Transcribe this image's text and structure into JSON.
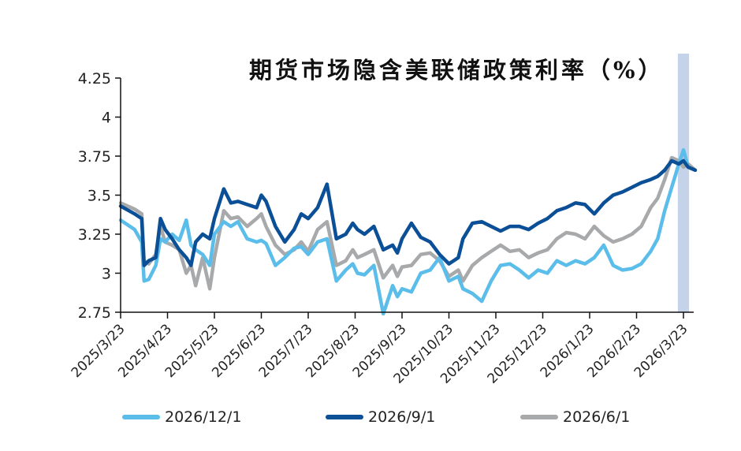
{
  "chart_data": {
    "type": "line",
    "title": "期货市场隐含美联储政策利率（%）",
    "xlabel": "",
    "ylabel": "",
    "ylim": [
      2.75,
      4.25
    ],
    "yticks": [
      "4.25",
      "4",
      "3.75",
      "3.5",
      "3.25",
      "3",
      "2.75"
    ],
    "ytick_values": [
      4.25,
      4.0,
      3.75,
      3.5,
      3.25,
      3.0,
      2.75
    ],
    "xticks": [
      "2025/3/23",
      "2025/4/23",
      "2025/5/23",
      "2025/6/23",
      "2025/7/23",
      "2025/8/23",
      "2025/9/23",
      "2025/10/23",
      "2025/11/23",
      "2025/12/23",
      "2026/1/23",
      "2026/2/23",
      "2026/3/23"
    ],
    "grid": false,
    "legend_position": "bottom",
    "highlight_band": {
      "from_month_offset": 11.88,
      "to_month_offset": 12.12,
      "color": "#c5d3ea"
    },
    "x_unit": "months since 2025/3/23",
    "series": [
      {
        "name": "2026/12/1",
        "color": "#5bbde9",
        "x": [
          0,
          0.3,
          0.45,
          0.5,
          0.6,
          0.75,
          0.85,
          0.95,
          1.1,
          1.25,
          1.4,
          1.5,
          1.6,
          1.75,
          1.9,
          2.0,
          2.2,
          2.35,
          2.5,
          2.7,
          2.9,
          3.0,
          3.1,
          3.3,
          3.5,
          3.7,
          3.85,
          4.0,
          4.2,
          4.4,
          4.6,
          4.8,
          4.95,
          5.05,
          5.2,
          5.4,
          5.6,
          5.8,
          5.9,
          6.0,
          6.2,
          6.4,
          6.6,
          6.8,
          7.0,
          7.2,
          7.3,
          7.5,
          7.7,
          7.9,
          8.1,
          8.3,
          8.5,
          8.7,
          8.9,
          9.1,
          9.3,
          9.5,
          9.7,
          9.9,
          10.1,
          10.3,
          10.5,
          10.7,
          10.9,
          11.1,
          11.3,
          11.45,
          11.6,
          11.75,
          11.9,
          12.0,
          12.1,
          12.25
        ],
        "values": [
          3.34,
          3.28,
          3.2,
          2.95,
          2.96,
          3.05,
          3.22,
          3.2,
          3.25,
          3.21,
          3.34,
          3.18,
          3.15,
          3.12,
          3.05,
          3.25,
          3.33,
          3.3,
          3.33,
          3.22,
          3.2,
          3.21,
          3.19,
          3.05,
          3.1,
          3.16,
          3.17,
          3.12,
          3.2,
          3.22,
          2.95,
          3.02,
          3.06,
          3.0,
          2.99,
          3.05,
          2.74,
          2.92,
          2.85,
          2.9,
          2.88,
          3.0,
          3.02,
          3.1,
          2.95,
          2.98,
          2.9,
          2.87,
          2.82,
          2.95,
          3.05,
          3.06,
          3.02,
          2.97,
          3.02,
          3.0,
          3.08,
          3.05,
          3.08,
          3.06,
          3.1,
          3.18,
          3.05,
          3.02,
          3.03,
          3.06,
          3.14,
          3.22,
          3.4,
          3.55,
          3.7,
          3.79,
          3.68,
          3.66
        ]
      },
      {
        "name": "2026/9/1",
        "color": "#0b4f96",
        "x": [
          0,
          0.3,
          0.45,
          0.5,
          0.6,
          0.75,
          0.85,
          0.95,
          1.1,
          1.25,
          1.4,
          1.5,
          1.6,
          1.75,
          1.9,
          2.0,
          2.2,
          2.35,
          2.5,
          2.7,
          2.9,
          3.0,
          3.1,
          3.3,
          3.5,
          3.7,
          3.85,
          4.0,
          4.2,
          4.4,
          4.6,
          4.8,
          4.95,
          5.05,
          5.2,
          5.4,
          5.6,
          5.8,
          5.9,
          6.0,
          6.2,
          6.4,
          6.6,
          6.8,
          7.0,
          7.2,
          7.3,
          7.5,
          7.7,
          7.9,
          8.1,
          8.3,
          8.5,
          8.7,
          8.9,
          9.1,
          9.3,
          9.5,
          9.7,
          9.9,
          10.1,
          10.3,
          10.5,
          10.7,
          10.9,
          11.1,
          11.3,
          11.45,
          11.6,
          11.75,
          11.9,
          12.0,
          12.1,
          12.25
        ],
        "values": [
          3.43,
          3.38,
          3.35,
          3.05,
          3.08,
          3.1,
          3.35,
          3.28,
          3.22,
          3.15,
          3.1,
          3.05,
          3.2,
          3.25,
          3.22,
          3.35,
          3.54,
          3.45,
          3.46,
          3.44,
          3.42,
          3.5,
          3.46,
          3.3,
          3.2,
          3.28,
          3.38,
          3.35,
          3.42,
          3.57,
          3.22,
          3.25,
          3.32,
          3.28,
          3.25,
          3.3,
          3.15,
          3.18,
          3.13,
          3.22,
          3.32,
          3.23,
          3.2,
          3.12,
          3.06,
          3.1,
          3.22,
          3.32,
          3.33,
          3.3,
          3.27,
          3.3,
          3.3,
          3.28,
          3.32,
          3.35,
          3.4,
          3.42,
          3.45,
          3.44,
          3.38,
          3.45,
          3.5,
          3.52,
          3.55,
          3.58,
          3.6,
          3.62,
          3.66,
          3.72,
          3.7,
          3.72,
          3.68,
          3.66
        ]
      },
      {
        "name": "2026/6/1",
        "color": "#a8a9ab",
        "x": [
          0,
          0.3,
          0.45,
          0.5,
          0.6,
          0.75,
          0.85,
          0.95,
          1.1,
          1.25,
          1.4,
          1.5,
          1.6,
          1.75,
          1.9,
          2.0,
          2.2,
          2.35,
          2.5,
          2.7,
          2.9,
          3.0,
          3.1,
          3.3,
          3.5,
          3.7,
          3.85,
          4.0,
          4.2,
          4.4,
          4.6,
          4.8,
          4.95,
          5.05,
          5.2,
          5.4,
          5.6,
          5.8,
          5.9,
          6.0,
          6.2,
          6.4,
          6.6,
          6.8,
          7.0,
          7.2,
          7.3,
          7.5,
          7.7,
          7.9,
          8.1,
          8.3,
          8.5,
          8.7,
          8.9,
          9.1,
          9.3,
          9.5,
          9.7,
          9.9,
          10.1,
          10.3,
          10.5,
          10.7,
          10.9,
          11.1,
          11.3,
          11.45,
          11.6,
          11.75,
          11.9,
          12.0,
          12.1,
          12.25
        ],
        "values": [
          3.45,
          3.41,
          3.38,
          3.08,
          3.06,
          3.12,
          3.3,
          3.2,
          3.18,
          3.15,
          3.0,
          3.05,
          2.92,
          3.1,
          2.9,
          3.1,
          3.4,
          3.35,
          3.36,
          3.3,
          3.35,
          3.38,
          3.3,
          3.18,
          3.12,
          3.15,
          3.2,
          3.14,
          3.28,
          3.33,
          3.05,
          3.08,
          3.15,
          3.1,
          3.12,
          3.15,
          2.97,
          3.05,
          2.98,
          3.04,
          3.05,
          3.12,
          3.13,
          3.08,
          2.98,
          3.02,
          2.95,
          3.05,
          3.1,
          3.14,
          3.18,
          3.14,
          3.15,
          3.1,
          3.13,
          3.15,
          3.22,
          3.26,
          3.25,
          3.22,
          3.3,
          3.24,
          3.2,
          3.22,
          3.25,
          3.3,
          3.42,
          3.48,
          3.6,
          3.74,
          3.72,
          3.68,
          3.7,
          3.66
        ]
      }
    ]
  },
  "legend": {
    "items": [
      {
        "label": "2026/12/1",
        "color": "#5bbde9"
      },
      {
        "label": "2026/9/1",
        "color": "#0b4f96"
      },
      {
        "label": "2026/6/1",
        "color": "#a8a9ab"
      }
    ]
  }
}
